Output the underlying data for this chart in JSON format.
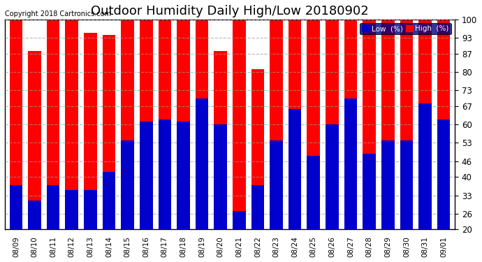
{
  "title": "Outdoor Humidity Daily High/Low 20180902",
  "copyright": "Copyright 2018 Cartronics.com",
  "dates": [
    "08/09",
    "08/10",
    "08/11",
    "08/12",
    "08/13",
    "08/14",
    "08/15",
    "08/16",
    "08/17",
    "08/18",
    "08/19",
    "08/20",
    "08/21",
    "08/22",
    "08/23",
    "08/24",
    "08/25",
    "08/26",
    "08/27",
    "08/28",
    "08/29",
    "08/30",
    "08/31",
    "09/01"
  ],
  "high": [
    100,
    88,
    100,
    100,
    95,
    94,
    100,
    100,
    100,
    100,
    100,
    88,
    100,
    81,
    100,
    100,
    100,
    100,
    100,
    100,
    100,
    100,
    100,
    100
  ],
  "low": [
    37,
    31,
    37,
    35,
    35,
    42,
    54,
    61,
    62,
    61,
    70,
    60,
    27,
    37,
    54,
    66,
    48,
    60,
    70,
    49,
    54,
    54,
    68,
    62
  ],
  "high_color": "#ff0000",
  "low_color": "#0000cc",
  "bg_color": "#ffffff",
  "plot_bg_color": "#ffffff",
  "border_color": "#000000",
  "grid_color": "#999999",
  "ylim_min": 20,
  "ylim_max": 100,
  "yticks": [
    20,
    26,
    33,
    40,
    46,
    53,
    60,
    67,
    73,
    80,
    87,
    93,
    100
  ],
  "title_fontsize": 13,
  "bar_width": 0.7,
  "legend_bg": "#000080"
}
